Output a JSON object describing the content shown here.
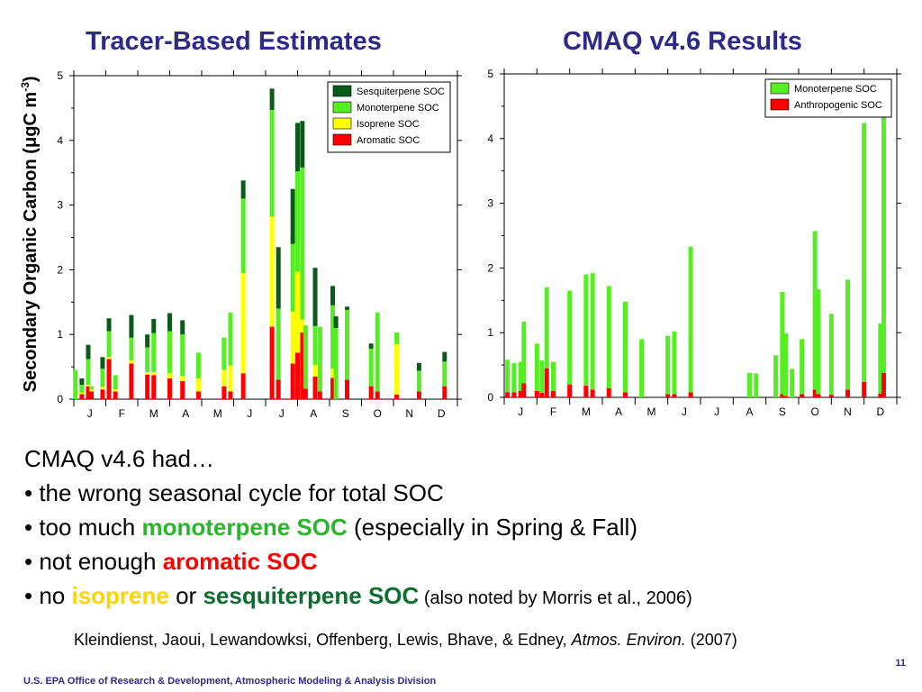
{
  "slide": {
    "title_left": "Tracer-Based Estimates",
    "title_right": "CMAQ v4.6 Results",
    "ylabel_main": "Secondary Organic Carbon (μgC m",
    "ylabel_sup": "-3",
    "ylabel_end": ")",
    "bullets": {
      "intro": "CMAQ v4.6 had…",
      "b1": "• the wrong seasonal cycle for total SOC",
      "b2_pre": "• too much ",
      "b2_hl": "monoterpene SOC",
      "b2_post": " (especially in Spring & Fall)",
      "b3_pre": "• not enough ",
      "b3_hl": "aromatic SOC",
      "b4_pre": "• no ",
      "b4_iso": "isoprene",
      "b4_or": " or ",
      "b4_sesq": "sesquiterpene SOC",
      "b4_note": " (also noted by Morris et al., 2006)"
    },
    "citation_pre": "Kleindienst, Jaoui, Lewandowksi, Offenberg, Lewis, Bhave, & Edney, ",
    "citation_journal": "Atmos. Environ.",
    "citation_year": " (2007)",
    "page_number": "11",
    "footer": "U.S. EPA Office of Research & Development, Atmospheric Modeling & Analysis Division"
  },
  "chart_data": [
    {
      "type": "bar",
      "stacked": true,
      "title": "Tracer-Based Estimates",
      "ylabel": "Secondary Organic Carbon (μgC m-3)",
      "ylim": [
        0,
        5
      ],
      "yticks": [
        0,
        1,
        2,
        3,
        4,
        5
      ],
      "xlim": [
        0,
        12
      ],
      "month_labels": [
        "J",
        "F",
        "M",
        "A",
        "M",
        "J",
        "J",
        "A",
        "S",
        "O",
        "N",
        "D"
      ],
      "legend": "top-right",
      "series": [
        {
          "name": "Aromatic SOC",
          "color": "#ff0000"
        },
        {
          "name": "Isoprene SOC",
          "color": "#ffff00"
        },
        {
          "name": "Monoterpene SOC",
          "color": "#55ee22"
        },
        {
          "name": "Sesquiterpene SOC",
          "color": "#0b5a1a"
        }
      ],
      "legend_order": [
        "Sesquiterpene SOC",
        "Monoterpene SOC",
        "Isoprene SOC",
        "Aromatic SOC"
      ],
      "samples": [
        {
          "x": 0.05,
          "values": [
            0.0,
            0.0,
            0.45,
            0.0
          ]
        },
        {
          "x": 0.25,
          "values": [
            0.08,
            0.02,
            0.12,
            0.1
          ]
        },
        {
          "x": 0.45,
          "values": [
            0.2,
            0.02,
            0.4,
            0.22
          ]
        },
        {
          "x": 0.55,
          "values": [
            0.12,
            0.03,
            0.05,
            0.0
          ]
        },
        {
          "x": 0.9,
          "values": [
            0.15,
            0.04,
            0.28,
            0.18
          ]
        },
        {
          "x": 1.1,
          "values": [
            0.62,
            0.03,
            0.4,
            0.2
          ]
        },
        {
          "x": 1.3,
          "values": [
            0.12,
            0.03,
            0.22,
            0.0
          ]
        },
        {
          "x": 1.8,
          "values": [
            0.55,
            0.05,
            0.35,
            0.35
          ]
        },
        {
          "x": 2.3,
          "values": [
            0.38,
            0.04,
            0.38,
            0.2
          ]
        },
        {
          "x": 2.5,
          "values": [
            0.37,
            0.05,
            0.6,
            0.22
          ]
        },
        {
          "x": 3.0,
          "values": [
            0.32,
            0.08,
            0.65,
            0.28
          ]
        },
        {
          "x": 3.4,
          "values": [
            0.28,
            0.08,
            0.64,
            0.22
          ]
        },
        {
          "x": 3.9,
          "values": [
            0.12,
            0.2,
            0.4,
            0.0
          ]
        },
        {
          "x": 4.7,
          "values": [
            0.2,
            0.25,
            0.5,
            0.0
          ]
        },
        {
          "x": 4.9,
          "values": [
            0.12,
            0.4,
            0.82,
            0.0
          ]
        },
        {
          "x": 5.3,
          "values": [
            0.4,
            1.55,
            1.15,
            0.28
          ]
        },
        {
          "x": 6.2,
          "values": [
            1.12,
            1.7,
            1.65,
            0.33
          ]
        },
        {
          "x": 6.4,
          "values": [
            0.3,
            0.0,
            1.1,
            0.95
          ]
        },
        {
          "x": 6.85,
          "values": [
            0.55,
            0.8,
            1.05,
            0.85
          ]
        },
        {
          "x": 7.0,
          "values": [
            0.72,
            1.25,
            1.55,
            0.75
          ]
        },
        {
          "x": 7.15,
          "values": [
            1.03,
            0.2,
            2.35,
            0.72
          ]
        },
        {
          "x": 7.25,
          "values": [
            0.16,
            0.0,
            0.98,
            0.0
          ]
        },
        {
          "x": 7.55,
          "values": [
            0.35,
            0.18,
            0.6,
            0.9
          ]
        },
        {
          "x": 7.7,
          "values": [
            0.12,
            0.0,
            1.0,
            0.0
          ]
        },
        {
          "x": 8.1,
          "values": [
            0.33,
            0.14,
            0.98,
            0.3
          ]
        },
        {
          "x": 8.2,
          "values": [
            0.0,
            0.0,
            1.1,
            0.18
          ]
        },
        {
          "x": 8.55,
          "values": [
            0.3,
            0.0,
            1.08,
            0.05
          ]
        },
        {
          "x": 9.3,
          "values": [
            0.2,
            0.0,
            0.58,
            0.08
          ]
        },
        {
          "x": 9.5,
          "values": [
            0.12,
            0.0,
            1.22,
            0.0
          ]
        },
        {
          "x": 10.1,
          "values": [
            0.07,
            0.78,
            0.18,
            0.0
          ]
        },
        {
          "x": 10.8,
          "values": [
            0.12,
            0.0,
            0.32,
            0.12
          ]
        },
        {
          "x": 11.6,
          "values": [
            0.2,
            0.0,
            0.38,
            0.15
          ]
        }
      ]
    },
    {
      "type": "bar",
      "stacked": true,
      "title": "CMAQ v4.6 Results",
      "ylim": [
        0,
        5
      ],
      "yticks": [
        0,
        1,
        2,
        3,
        4,
        5
      ],
      "xlim": [
        0,
        12
      ],
      "month_labels": [
        "J",
        "F",
        "M",
        "A",
        "M",
        "J",
        "J",
        "A",
        "S",
        "O",
        "N",
        "D"
      ],
      "legend": "top-right",
      "series": [
        {
          "name": "Anthropogenic SOC",
          "color": "#ff0000"
        },
        {
          "name": "Monoterpene SOC",
          "color": "#55ee22"
        }
      ],
      "legend_order": [
        "Monoterpene SOC",
        "Anthropogenic SOC"
      ],
      "samples": [
        {
          "x": 0.1,
          "values": [
            0.08,
            0.5
          ]
        },
        {
          "x": 0.3,
          "values": [
            0.08,
            0.45
          ]
        },
        {
          "x": 0.5,
          "values": [
            0.1,
            0.45
          ]
        },
        {
          "x": 0.6,
          "values": [
            0.22,
            0.95
          ]
        },
        {
          "x": 1.0,
          "values": [
            0.1,
            0.73
          ]
        },
        {
          "x": 1.15,
          "values": [
            0.07,
            0.5
          ]
        },
        {
          "x": 1.3,
          "values": [
            0.45,
            1.25
          ]
        },
        {
          "x": 1.5,
          "values": [
            0.1,
            0.45
          ]
        },
        {
          "x": 2.0,
          "values": [
            0.2,
            1.45
          ]
        },
        {
          "x": 2.5,
          "values": [
            0.18,
            1.72
          ]
        },
        {
          "x": 2.7,
          "values": [
            0.12,
            1.8
          ]
        },
        {
          "x": 3.2,
          "values": [
            0.14,
            1.58
          ]
        },
        {
          "x": 3.7,
          "values": [
            0.08,
            1.4
          ]
        },
        {
          "x": 4.2,
          "values": [
            0.0,
            0.9
          ]
        },
        {
          "x": 5.0,
          "values": [
            0.05,
            0.9
          ]
        },
        {
          "x": 5.2,
          "values": [
            0.05,
            0.97
          ]
        },
        {
          "x": 5.7,
          "values": [
            0.08,
            2.25
          ]
        },
        {
          "x": 7.5,
          "values": [
            0.0,
            0.38
          ]
        },
        {
          "x": 7.7,
          "values": [
            0.0,
            0.37
          ]
        },
        {
          "x": 8.3,
          "values": [
            0.0,
            0.65
          ]
        },
        {
          "x": 8.5,
          "values": [
            0.05,
            1.58
          ]
        },
        {
          "x": 8.6,
          "values": [
            0.02,
            0.97
          ]
        },
        {
          "x": 8.8,
          "values": [
            0.0,
            0.44
          ]
        },
        {
          "x": 9.1,
          "values": [
            0.05,
            0.85
          ]
        },
        {
          "x": 9.5,
          "values": [
            0.12,
            2.45
          ]
        },
        {
          "x": 9.6,
          "values": [
            0.05,
            1.62
          ]
        },
        {
          "x": 10.0,
          "values": [
            0.04,
            1.25
          ]
        },
        {
          "x": 10.5,
          "values": [
            0.12,
            1.7
          ]
        },
        {
          "x": 11.0,
          "values": [
            0.24,
            4.0
          ]
        },
        {
          "x": 11.5,
          "values": [
            0.06,
            1.08
          ]
        },
        {
          "x": 11.6,
          "values": [
            0.38,
            4.0
          ]
        },
        {
          "x": 12.2,
          "values": [
            0.12,
            0.8
          ]
        },
        {
          "x": 12.8,
          "values": [
            0.08,
            1.04
          ]
        }
      ]
    }
  ]
}
